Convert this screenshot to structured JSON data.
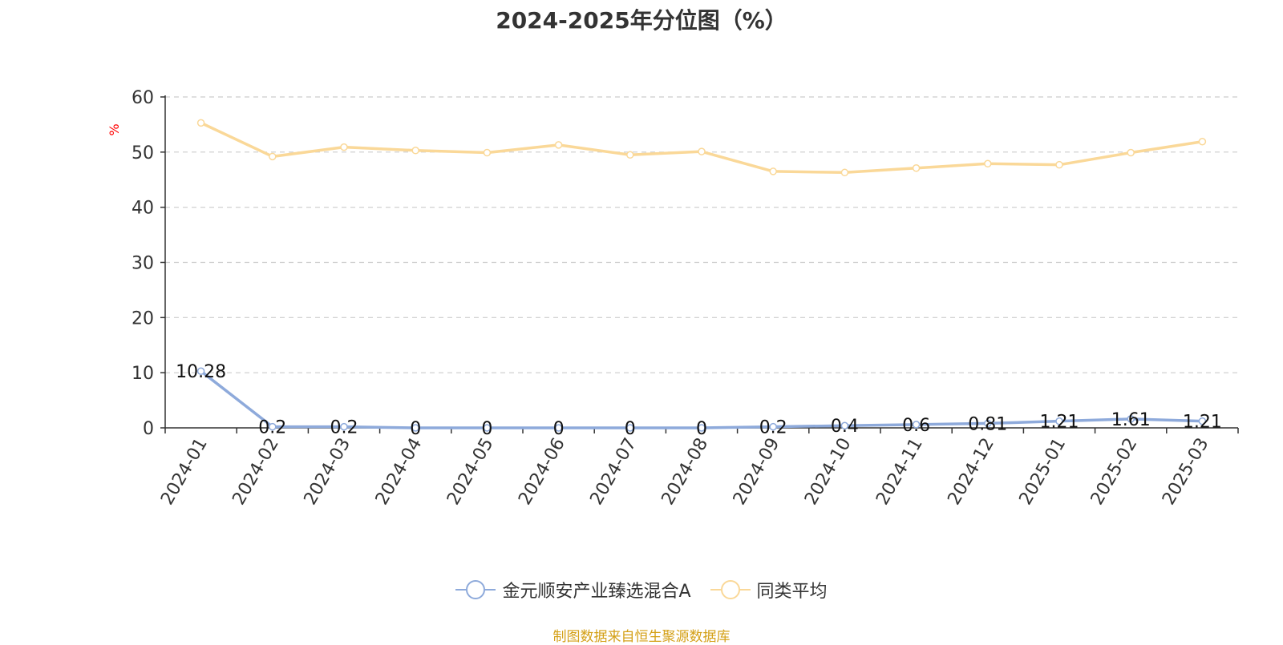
{
  "chart_data": {
    "type": "line",
    "title": "2024-2025年分位图（%）",
    "ylabel": "%",
    "xlabel": "",
    "ylim": [
      0,
      60
    ],
    "yticks": [
      0,
      10,
      20,
      30,
      40,
      50,
      60
    ],
    "grid": true,
    "legend_position": "bottom",
    "categories": [
      "2024-01",
      "2024-02",
      "2024-03",
      "2024-04",
      "2024-05",
      "2024-06",
      "2024-07",
      "2024-08",
      "2024-09",
      "2024-10",
      "2024-11",
      "2024-12",
      "2025-01",
      "2025-02",
      "2025-03"
    ],
    "series": [
      {
        "name": "金元顺安产业臻选混合A",
        "color": "#8eaadb",
        "values": [
          10.28,
          0.2,
          0.2,
          0,
          0,
          0,
          0,
          0,
          0.2,
          0.4,
          0.6,
          0.81,
          1.21,
          1.61,
          1.21
        ],
        "data_labels": [
          "10.28",
          "0.2",
          "0.2",
          "0",
          "0",
          "0",
          "0",
          "0",
          "0.2",
          "0.4",
          "0.6",
          "0.81",
          "1.21",
          "1.61",
          "1.21"
        ]
      },
      {
        "name": "同类平均",
        "color": "#fad898",
        "values": [
          55.3,
          49.2,
          50.9,
          50.3,
          49.9,
          51.3,
          49.5,
          50.1,
          46.5,
          46.3,
          47.1,
          47.9,
          47.7,
          49.9,
          51.9
        ]
      }
    ]
  },
  "footer": "制图数据来自恒生聚源数据库"
}
